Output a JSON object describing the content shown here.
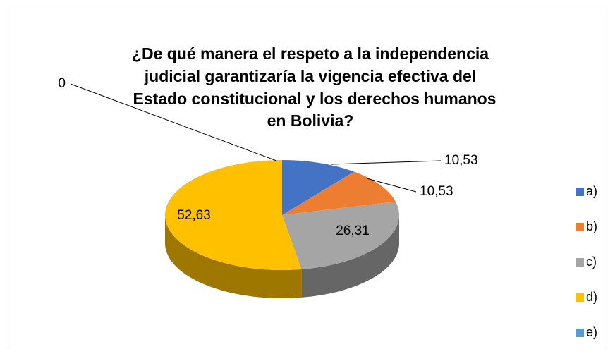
{
  "chart_data": {
    "type": "pie",
    "title": [
      "¿De qué manera el respeto a la independencia",
      "judicial garantizaría la vigencia efectiva del",
      "Estado constitucional  y los derechos humanos",
      "en Bolivia?"
    ],
    "categories": [
      "a)",
      "b)",
      "c)",
      "d)",
      "e)"
    ],
    "values": [
      10.53,
      10.53,
      26.31,
      52.63,
      0
    ],
    "value_labels": [
      "10,53",
      "10,53",
      "26,31",
      "52,63",
      "0"
    ],
    "colors": [
      "#4472c4",
      "#ed7d31",
      "#a5a5a5",
      "#ffc000",
      "#5b9bd5"
    ],
    "legend": "right"
  }
}
